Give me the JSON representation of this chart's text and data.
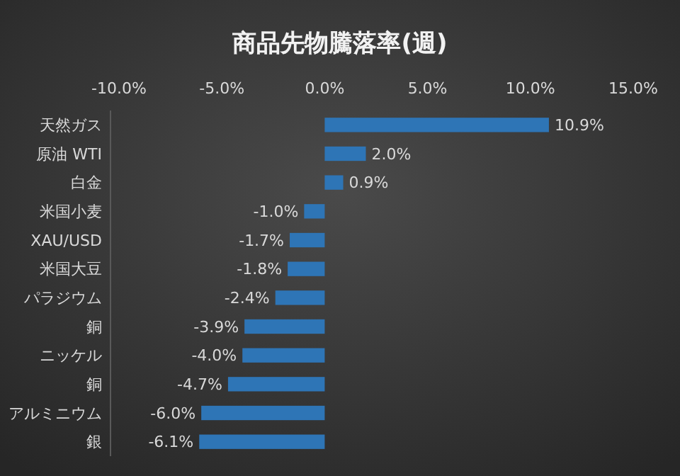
{
  "chart_data": {
    "type": "bar",
    "orientation": "horizontal",
    "title": "商品先物騰落率(週)",
    "categories": [
      "天然ガス",
      "原油 WTI",
      "白金",
      "米国小麦",
      "XAU/USD",
      "米国大豆",
      "パラジウム",
      "銅",
      "ニッケル",
      "銅",
      "アルミニウム",
      "銀"
    ],
    "values": [
      10.9,
      2.0,
      0.9,
      -1.0,
      -1.7,
      -1.8,
      -2.4,
      -3.9,
      -4.0,
      -4.7,
      -6.0,
      -6.1
    ],
    "value_labels": [
      "10.9%",
      "2.0%",
      "0.9%",
      "-1.0%",
      "-1.7%",
      "-1.8%",
      "-2.4%",
      "-3.9%",
      "-4.0%",
      "-4.7%",
      "-6.0%",
      "-6.1%"
    ],
    "color": "#2e75b6",
    "xlim": [
      -10,
      15
    ],
    "xticks": [
      {
        "value": -10,
        "label": "-10.0%"
      },
      {
        "value": -5,
        "label": "-5.0%"
      },
      {
        "value": 0,
        "label": "0.0%"
      },
      {
        "value": 5,
        "label": "5.0%"
      },
      {
        "value": 10,
        "label": "10.0%"
      },
      {
        "value": 15,
        "label": "15.0%"
      }
    ],
    "grid": false
  }
}
